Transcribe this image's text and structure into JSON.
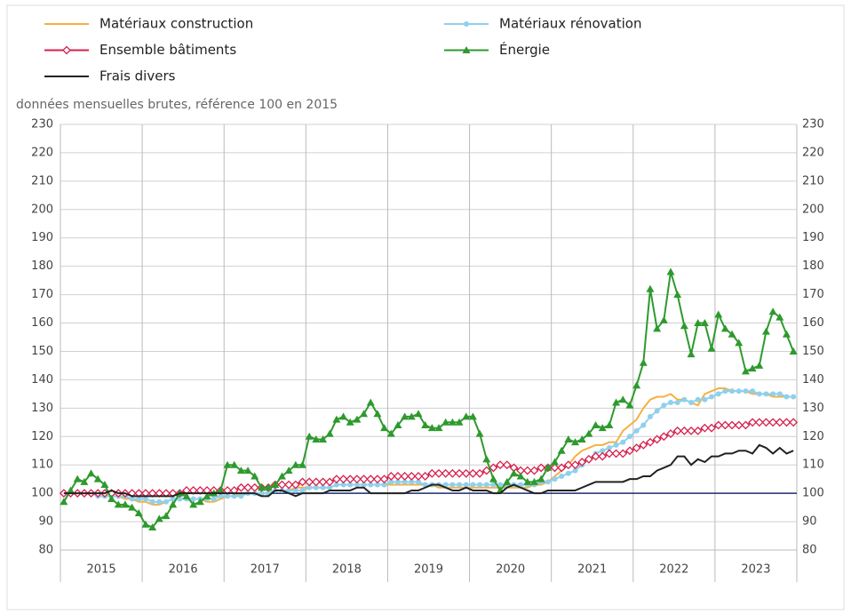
{
  "chart_data": {
    "type": "line",
    "subtitle": "données mensuelles brutes, référence 100 en 2015",
    "categories": [
      "2015",
      null,
      null,
      null,
      null,
      null,
      null,
      null,
      null,
      null,
      null,
      null,
      "2016",
      null,
      null,
      null,
      null,
      null,
      null,
      null,
      null,
      null,
      null,
      null,
      "2017",
      null,
      null,
      null,
      null,
      null,
      null,
      null,
      null,
      null,
      null,
      null,
      "2018",
      null,
      null,
      null,
      null,
      null,
      null,
      null,
      null,
      null,
      null,
      null,
      "2019",
      null,
      null,
      null,
      null,
      null,
      null,
      null,
      null,
      null,
      null,
      null,
      "2020",
      null,
      null,
      null,
      null,
      null,
      null,
      null,
      null,
      null,
      null,
      null,
      "2021",
      null,
      null,
      null,
      null,
      null,
      null,
      null,
      null,
      null,
      null,
      null,
      "2022",
      null,
      null,
      null,
      null,
      null,
      null,
      null,
      null,
      null,
      null,
      null,
      "2023",
      null,
      null,
      null,
      null,
      null,
      null,
      null,
      null,
      null,
      null,
      null
    ],
    "ylim": [
      80,
      230
    ],
    "yticks": [
      80,
      90,
      100,
      110,
      120,
      130,
      140,
      150,
      160,
      170,
      180,
      190,
      200,
      210,
      220,
      230
    ],
    "y2lim": [
      80,
      230
    ],
    "y2ticks": [
      80,
      90,
      100,
      110,
      120,
      130,
      140,
      150,
      160,
      170,
      180,
      190,
      200,
      210,
      220,
      230
    ],
    "grid": true,
    "reference": 100,
    "reference_color": "#1f2a6b",
    "series": [
      {
        "name": "Matériaux construction",
        "color": "#f5b041",
        "values": [
          100,
          100,
          100,
          100,
          100,
          99,
          99,
          99,
          99,
          98,
          98,
          97,
          97,
          96,
          96,
          97,
          98,
          98,
          98,
          98,
          98,
          97,
          97,
          98,
          99,
          99,
          100,
          100,
          100,
          100,
          100,
          101,
          101,
          101,
          102,
          102,
          102,
          102,
          102,
          102,
          103,
          103,
          103,
          103,
          103,
          103,
          103,
          103,
          103,
          103,
          103,
          103,
          103,
          103,
          103,
          102,
          102,
          102,
          102,
          102,
          102,
          102,
          102,
          102,
          102,
          102,
          102,
          102,
          102,
          103,
          103,
          104,
          106,
          108,
          110,
          113,
          115,
          116,
          117,
          117,
          118,
          118,
          122,
          124,
          126,
          130,
          133,
          134,
          134,
          135,
          133,
          133,
          132,
          131,
          135,
          136,
          137,
          137,
          136,
          136,
          136,
          135,
          135,
          135,
          134,
          134,
          134,
          134
        ]
      },
      {
        "name": "Matériaux rénovation",
        "color": "#8fd0ec",
        "marker": "circle",
        "values": [
          100,
          100,
          100,
          100,
          100,
          99,
          99,
          99,
          99,
          99,
          98,
          98,
          98,
          97,
          97,
          97,
          98,
          98,
          98,
          98,
          98,
          98,
          98,
          99,
          99,
          99,
          99,
          100,
          100,
          100,
          100,
          101,
          101,
          101,
          101,
          101,
          102,
          102,
          102,
          102,
          103,
          103,
          103,
          103,
          103,
          103,
          103,
          103,
          104,
          104,
          104,
          104,
          104,
          103,
          103,
          103,
          103,
          103,
          103,
          103,
          103,
          103,
          103,
          103,
          103,
          103,
          103,
          103,
          103,
          103,
          104,
          104,
          105,
          106,
          107,
          108,
          110,
          112,
          114,
          115,
          116,
          117,
          118,
          120,
          122,
          124,
          127,
          129,
          131,
          132,
          132,
          133,
          132,
          133,
          133,
          134,
          135,
          136,
          136,
          136,
          136,
          136,
          135,
          135,
          135,
          135,
          134,
          134
        ]
      },
      {
        "name": "Ensemble bâtiments",
        "color": "#d6204c",
        "marker": "diamond",
        "values": [
          100,
          100,
          100,
          100,
          100,
          100,
          100,
          100,
          100,
          100,
          100,
          100,
          100,
          100,
          100,
          100,
          100,
          100,
          101,
          101,
          101,
          101,
          101,
          101,
          101,
          101,
          102,
          102,
          102,
          102,
          102,
          103,
          103,
          103,
          103,
          104,
          104,
          104,
          104,
          104,
          105,
          105,
          105,
          105,
          105,
          105,
          105,
          105,
          106,
          106,
          106,
          106,
          106,
          106,
          107,
          107,
          107,
          107,
          107,
          107,
          107,
          107,
          108,
          109,
          110,
          110,
          109,
          108,
          108,
          108,
          109,
          109,
          109,
          109,
          110,
          110,
          111,
          112,
          113,
          113,
          114,
          114,
          114,
          115,
          116,
          117,
          118,
          119,
          120,
          121,
          122,
          122,
          122,
          122,
          123,
          123,
          124,
          124,
          124,
          124,
          124,
          125,
          125,
          125,
          125,
          125,
          125,
          125
        ]
      },
      {
        "name": "Énergie",
        "color": "#2e9a2e",
        "marker": "triangle",
        "values": [
          97,
          101,
          105,
          104,
          107,
          105,
          103,
          98,
          96,
          96,
          95,
          93,
          89,
          88,
          91,
          92,
          96,
          100,
          99,
          96,
          97,
          99,
          100,
          101,
          110,
          110,
          108,
          108,
          106,
          102,
          102,
          103,
          106,
          108,
          110,
          110,
          120,
          119,
          119,
          121,
          126,
          127,
          125,
          126,
          128,
          132,
          128,
          123,
          121,
          124,
          127,
          127,
          128,
          124,
          123,
          123,
          125,
          125,
          125,
          127,
          127,
          121,
          112,
          105,
          101,
          104,
          107,
          106,
          104,
          104,
          105,
          109,
          111,
          115,
          119,
          118,
          119,
          121,
          124,
          123,
          124,
          132,
          133,
          131,
          138,
          146,
          172,
          158,
          161,
          178,
          170,
          159,
          149,
          160,
          160,
          151,
          163,
          158,
          156,
          153,
          143,
          144,
          145,
          157,
          164,
          162,
          156,
          150
        ]
      },
      {
        "name": "Frais divers",
        "color": "#222222",
        "values": [
          100,
          100,
          100,
          100,
          100,
          100,
          100,
          101,
          100,
          100,
          99,
          99,
          99,
          99,
          99,
          99,
          99,
          100,
          100,
          100,
          100,
          100,
          100,
          100,
          100,
          100,
          100,
          100,
          100,
          99,
          99,
          101,
          101,
          100,
          99,
          100,
          100,
          100,
          100,
          101,
          101,
          101,
          101,
          102,
          102,
          100,
          100,
          100,
          100,
          100,
          100,
          101,
          101,
          102,
          103,
          103,
          102,
          101,
          101,
          102,
          101,
          101,
          101,
          100,
          100,
          102,
          103,
          102,
          101,
          100,
          100,
          101,
          101,
          101,
          101,
          101,
          102,
          103,
          104,
          104,
          104,
          104,
          104,
          105,
          105,
          106,
          106,
          108,
          109,
          110,
          113,
          113,
          110,
          112,
          111,
          113,
          113,
          114,
          114,
          115,
          115,
          114,
          117,
          116,
          114,
          116,
          114,
          115
        ]
      }
    ]
  }
}
